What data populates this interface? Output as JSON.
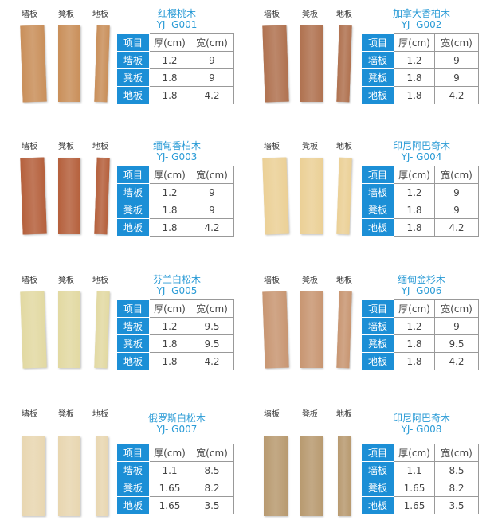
{
  "labels": {
    "wall": "墙板",
    "bench": "凳板",
    "floor": "地板"
  },
  "header": {
    "item": "项目",
    "thick": "厚(cm)",
    "width": "宽(cm)"
  },
  "products": [
    {
      "name": "红樱桃木",
      "code": "YJ- G001",
      "color": "#c98f5a",
      "rows": [
        [
          "1.2",
          "9"
        ],
        [
          "1.8",
          "9"
        ],
        [
          "1.8",
          "4.2"
        ]
      ]
    },
    {
      "name": "加拿大香柏木",
      "code": "YJ- G002",
      "color": "#b07250",
      "rows": [
        [
          "1.2",
          "9"
        ],
        [
          "1.8",
          "9"
        ],
        [
          "1.8",
          "4.2"
        ]
      ]
    },
    {
      "name": "缅甸香柏木",
      "code": "YJ- G003",
      "color": "#b5603c",
      "rows": [
        [
          "1.2",
          "9"
        ],
        [
          "1.8",
          "9"
        ],
        [
          "1.8",
          "4.2"
        ]
      ]
    },
    {
      "name": "印尼阿巴奇木",
      "code": "YJ- G004",
      "color": "#ebd096",
      "rows": [
        [
          "1.2",
          "9"
        ],
        [
          "1.8",
          "9"
        ],
        [
          "1.8",
          "4.2"
        ]
      ]
    },
    {
      "name": "芬兰白松木",
      "code": "YJ- G005",
      "color": "#e2d9a2",
      "rows": [
        [
          "1.2",
          "9.5"
        ],
        [
          "1.8",
          "9.5"
        ],
        [
          "1.8",
          "4.2"
        ]
      ]
    },
    {
      "name": "缅甸金杉木",
      "code": "YJ- G006",
      "color": "#c89672",
      "rows": [
        [
          "1.2",
          "9"
        ],
        [
          "1.8",
          "9.5"
        ],
        [
          "1.8",
          "4.2"
        ]
      ]
    },
    {
      "name": "俄罗斯白松木",
      "code": "YJ- G007",
      "color": "#e8d6b0",
      "rows": [
        [
          "1.1",
          "8.5"
        ],
        [
          "1.65",
          "8.2"
        ],
        [
          "1.65",
          "3.5"
        ]
      ]
    },
    {
      "name": "印尼阿巴奇木",
      "code": "YJ- G008",
      "color": "#b89a70",
      "rows": [
        [
          "1.1",
          "8.5"
        ],
        [
          "1.65",
          "8.2"
        ],
        [
          "1.65",
          "3.5"
        ]
      ]
    }
  ]
}
